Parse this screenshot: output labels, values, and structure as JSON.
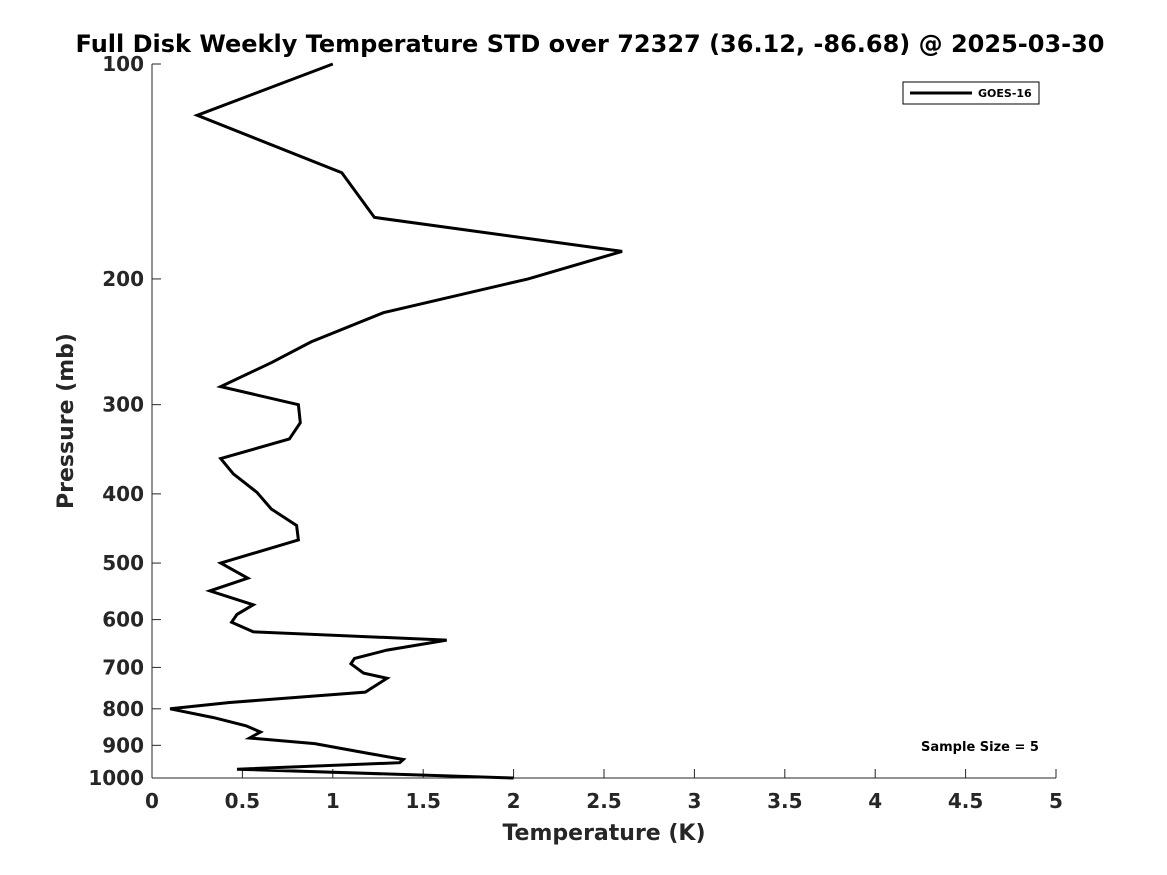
{
  "chart_data": {
    "type": "line",
    "title": "Full Disk Weekly Temperature STD over 72327 (36.12, -86.68) @ 2025-03-30",
    "xlabel": "Temperature (K)",
    "ylabel": "Pressure (mb)",
    "xlim": [
      0,
      5
    ],
    "ylim": [
      100,
      1000
    ],
    "y_scale": "log",
    "y_reversed": true,
    "x_ticks": [
      0,
      0.5,
      1,
      1.5,
      2,
      2.5,
      3,
      3.5,
      4,
      4.5,
      5
    ],
    "x_tick_labels": [
      "0",
      "0.5",
      "1",
      "1.5",
      "2",
      "2.5",
      "3",
      "3.5",
      "4",
      "4.5",
      "5"
    ],
    "y_ticks": [
      100,
      200,
      300,
      400,
      500,
      600,
      700,
      800,
      900,
      1000
    ],
    "y_tick_labels": [
      "100",
      "200",
      "300",
      "400",
      "500",
      "600",
      "700",
      "800",
      "900",
      "1000"
    ],
    "grid": false,
    "legend_position": "top-right",
    "annotation": "Sample Size = 5",
    "series": [
      {
        "name": "GOES-16",
        "color": "#000000",
        "points": [
          [
            1.0,
            100
          ],
          [
            0.25,
            118
          ],
          [
            1.05,
            142
          ],
          [
            1.23,
            164
          ],
          [
            2.6,
            183
          ],
          [
            2.08,
            200
          ],
          [
            1.28,
            223
          ],
          [
            0.88,
            245
          ],
          [
            0.66,
            262
          ],
          [
            0.38,
            283
          ],
          [
            0.81,
            300
          ],
          [
            0.82,
            318
          ],
          [
            0.76,
            335
          ],
          [
            0.38,
            357
          ],
          [
            0.45,
            375
          ],
          [
            0.58,
            398
          ],
          [
            0.66,
            420
          ],
          [
            0.8,
            443
          ],
          [
            0.81,
            464
          ],
          [
            0.38,
            500
          ],
          [
            0.53,
            525
          ],
          [
            0.32,
            547
          ],
          [
            0.56,
            572
          ],
          [
            0.47,
            590
          ],
          [
            0.44,
            605
          ],
          [
            0.56,
            624
          ],
          [
            1.63,
            641
          ],
          [
            1.3,
            662
          ],
          [
            1.12,
            680
          ],
          [
            1.1,
            692
          ],
          [
            1.17,
            713
          ],
          [
            1.3,
            725
          ],
          [
            1.18,
            758
          ],
          [
            0.43,
            784
          ],
          [
            0.1,
            800
          ],
          [
            0.34,
            823
          ],
          [
            0.52,
            845
          ],
          [
            0.6,
            862
          ],
          [
            0.54,
            879
          ],
          [
            0.9,
            895
          ],
          [
            1.2,
            924
          ],
          [
            1.39,
            942
          ],
          [
            1.37,
            952
          ],
          [
            0.47,
            972
          ],
          [
            2.0,
            1000
          ]
        ]
      }
    ]
  }
}
